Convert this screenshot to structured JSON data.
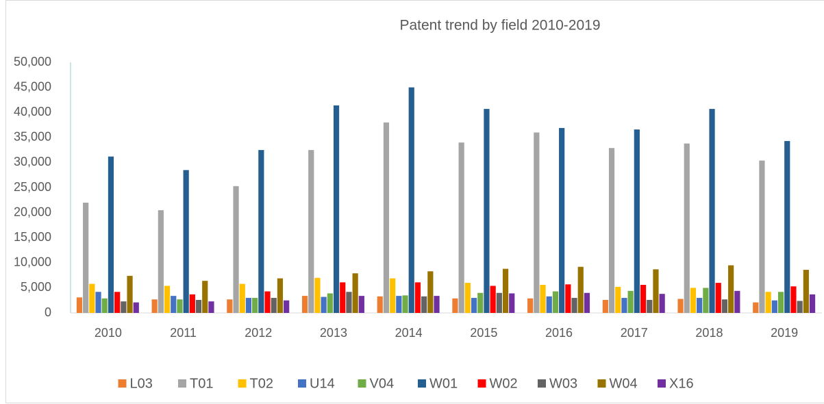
{
  "chart_data": {
    "type": "bar",
    "title": "Patent trend by field 2010-2019",
    "categories": [
      "2010",
      "2011",
      "2012",
      "2013",
      "2014",
      "2015",
      "2016",
      "2017",
      "2018",
      "2019"
    ],
    "series": [
      {
        "name": "L03",
        "color": "#ed7d31",
        "values": [
          3100,
          2700,
          2700,
          3400,
          3300,
          2900,
          2900,
          2600,
          2800,
          2100
        ]
      },
      {
        "name": "T01",
        "color": "#a5a5a5",
        "values": [
          22000,
          20500,
          25300,
          32500,
          38000,
          34000,
          36000,
          32900,
          33800,
          30400
        ]
      },
      {
        "name": "T02",
        "color": "#ffc000",
        "values": [
          5800,
          5400,
          5800,
          7000,
          6900,
          6000,
          5600,
          5200,
          5000,
          4200
        ]
      },
      {
        "name": "U14",
        "color": "#4472c4",
        "values": [
          4200,
          3400,
          3000,
          3200,
          3400,
          3000,
          3300,
          3000,
          3000,
          2500
        ]
      },
      {
        "name": "V04",
        "color": "#70ad47",
        "values": [
          2900,
          2700,
          3000,
          3900,
          3500,
          4000,
          4300,
          4400,
          5000,
          4200
        ]
      },
      {
        "name": "W01",
        "color": "#255e91",
        "values": [
          31200,
          28500,
          32500,
          41400,
          45000,
          40700,
          36900,
          36600,
          40700,
          34300
        ]
      },
      {
        "name": "W02",
        "color": "#ff0000",
        "values": [
          4200,
          3700,
          4300,
          6100,
          6100,
          5400,
          5700,
          5600,
          6000,
          5300
        ]
      },
      {
        "name": "W03",
        "color": "#636363",
        "values": [
          2300,
          2600,
          3000,
          4200,
          3300,
          4000,
          3000,
          2600,
          2700,
          2400
        ]
      },
      {
        "name": "W04",
        "color": "#997300",
        "values": [
          7400,
          6400,
          6900,
          7900,
          8300,
          8800,
          9200,
          8700,
          9500,
          8600
        ]
      },
      {
        "name": "X16",
        "color": "#7030a0",
        "values": [
          2100,
          2300,
          2500,
          3400,
          3400,
          3900,
          4000,
          3800,
          4400,
          3700
        ]
      }
    ],
    "ylim": [
      0,
      50000
    ],
    "yticks": [
      0,
      {
        "value": 5000,
        "label": "5,000"
      },
      {
        "value": 10000,
        "label": "10,000"
      },
      {
        "value": 15000,
        "label": "15,000"
      },
      {
        "value": 20000,
        "label": "20,000"
      },
      {
        "value": 25000,
        "label": "25,000"
      },
      {
        "value": 30000,
        "label": "30,000"
      },
      {
        "value": 35000,
        "label": "35,000"
      },
      {
        "value": 40000,
        "label": "40,000"
      },
      {
        "value": 45000,
        "label": "45,000"
      },
      {
        "value": 50000,
        "label": "50,000"
      }
    ],
    "grid": false,
    "legend": "bottom"
  }
}
